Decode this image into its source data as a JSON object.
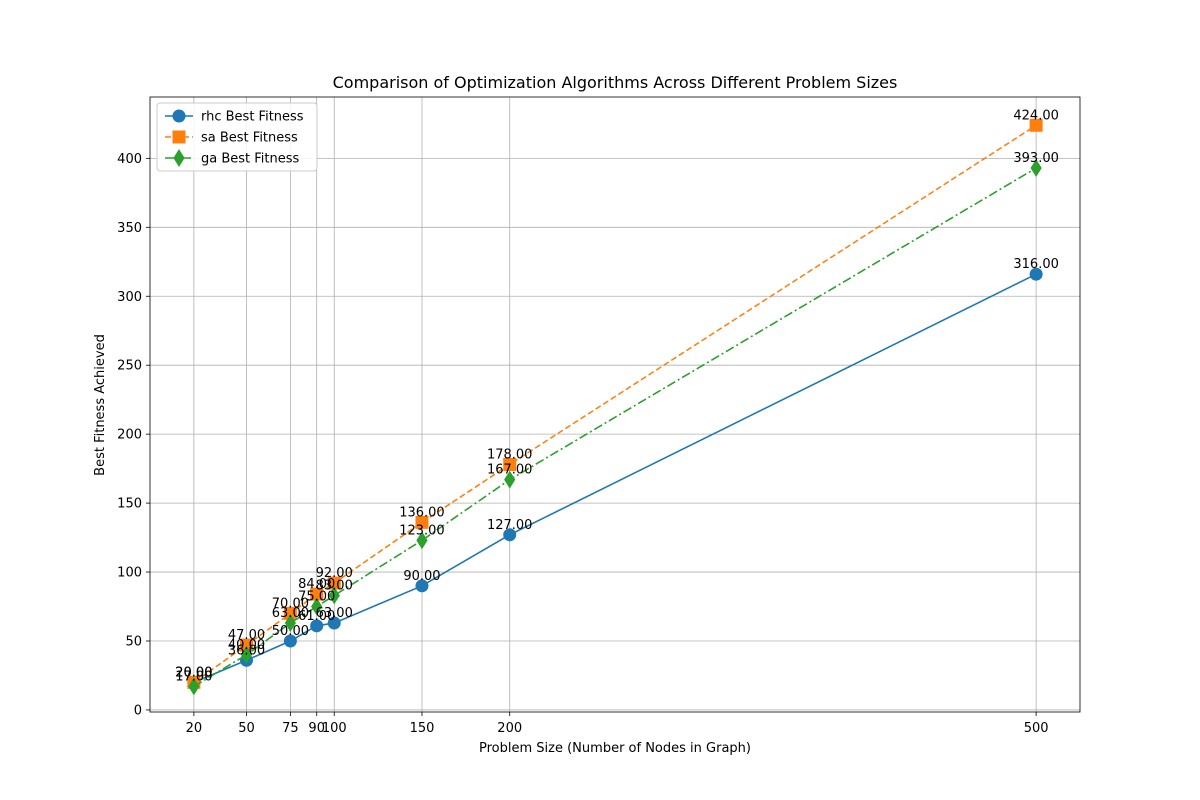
{
  "chart_data": {
    "type": "line",
    "title": "Comparison of Optimization Algorithms Across Different Problem Sizes",
    "xlabel": "Problem Size (Number of Nodes in Graph)",
    "ylabel": "Best Fitness Achieved",
    "x": [
      20,
      50,
      75,
      90,
      100,
      150,
      200,
      500
    ],
    "x_ticks": [
      "20",
      "50",
      "75",
      "90",
      "100",
      "150",
      "200",
      "500"
    ],
    "y_ticks": [
      "0",
      "50",
      "100",
      "150",
      "200",
      "250",
      "300",
      "350",
      "400"
    ],
    "xlim": [
      -5,
      525
    ],
    "ylim": [
      -1.5,
      444.5
    ],
    "grid": true,
    "legend_position": "upper-left",
    "series": [
      {
        "name": "rhc Best Fitness",
        "values": [
          20,
          36,
          50,
          61,
          63,
          90,
          127,
          316
        ],
        "labels": [
          "20.00",
          "36.00",
          "50.00",
          "61.00",
          "63.00",
          "90.00",
          "127.00",
          "316.00"
        ],
        "color": "#1f77b4",
        "line_style": "solid",
        "marker": "circle"
      },
      {
        "name": "sa Best Fitness",
        "values": [
          20,
          47,
          70,
          84,
          92,
          136,
          178,
          424
        ],
        "labels": [
          "20.00",
          "47.00",
          "70.00",
          "84.00",
          "92.00",
          "136.00",
          "178.00",
          "424.00"
        ],
        "color": "#ff7f0e",
        "line_style": "dashed",
        "marker": "square"
      },
      {
        "name": "ga Best Fitness",
        "values": [
          17,
          40,
          63,
          75,
          83,
          123,
          167,
          393
        ],
        "labels": [
          "17.00",
          "40.00",
          "63.00",
          "75.00",
          "83.00",
          "123.00",
          "167.00",
          "393.00"
        ],
        "color": "#2ca02c",
        "line_style": "dashdot",
        "marker": "diamond"
      }
    ]
  }
}
